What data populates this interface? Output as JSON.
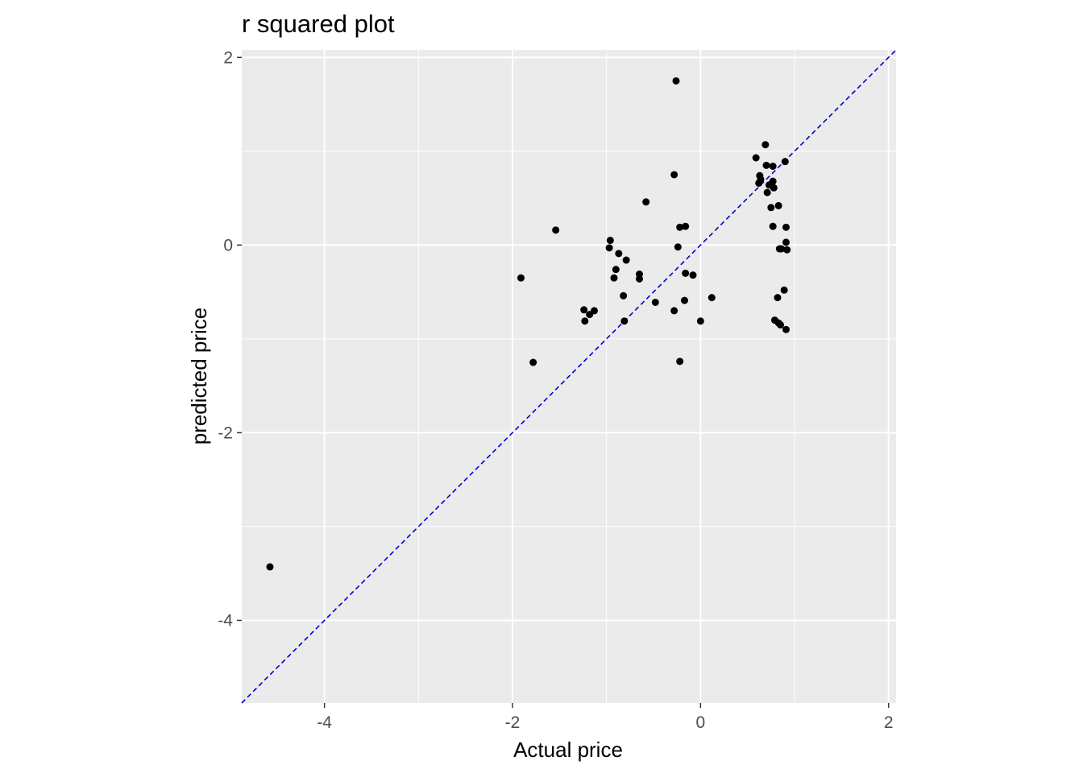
{
  "chart_data": {
    "type": "scatter",
    "title": "r squared plot",
    "xlabel": "Actual price",
    "ylabel": "predicted price",
    "xlim": [
      -4.88,
      2.08
    ],
    "ylim": [
      -4.88,
      2.08
    ],
    "x_ticks": [
      -4,
      -2,
      0,
      2
    ],
    "y_ticks": [
      -4,
      -2,
      0,
      2
    ],
    "x_tick_labels": [
      "-4",
      "-2",
      "0",
      "2"
    ],
    "y_tick_labels": [
      "-4",
      "-2",
      "0",
      "2"
    ],
    "grid": true,
    "reference_line": {
      "slope": 1,
      "intercept": 0,
      "style": "dashed",
      "color": "#0000cc"
    },
    "colors": {
      "panel": "#ebebeb",
      "grid": "#ffffff",
      "points": "#000000"
    },
    "points": [
      {
        "x": -4.58,
        "y": -3.43
      },
      {
        "x": -1.91,
        "y": -0.35
      },
      {
        "x": -1.78,
        "y": -1.25
      },
      {
        "x": -1.54,
        "y": 0.16
      },
      {
        "x": -1.24,
        "y": -0.69
      },
      {
        "x": -1.23,
        "y": -0.81
      },
      {
        "x": -1.18,
        "y": -0.74
      },
      {
        "x": -1.13,
        "y": -0.7
      },
      {
        "x": -0.97,
        "y": -0.03
      },
      {
        "x": -0.96,
        "y": 0.05
      },
      {
        "x": -0.92,
        "y": -0.35
      },
      {
        "x": -0.9,
        "y": -0.26
      },
      {
        "x": -0.87,
        "y": -0.09
      },
      {
        "x": -0.82,
        "y": -0.54
      },
      {
        "x": -0.81,
        "y": -0.81
      },
      {
        "x": -0.79,
        "y": -0.16
      },
      {
        "x": -0.65,
        "y": -0.31
      },
      {
        "x": -0.65,
        "y": -0.36
      },
      {
        "x": -0.58,
        "y": 0.46
      },
      {
        "x": -0.48,
        "y": -0.61
      },
      {
        "x": -0.28,
        "y": 0.75
      },
      {
        "x": -0.28,
        "y": -0.7
      },
      {
        "x": -0.26,
        "y": 1.75
      },
      {
        "x": -0.24,
        "y": -0.02
      },
      {
        "x": -0.22,
        "y": 0.19
      },
      {
        "x": -0.22,
        "y": -1.24
      },
      {
        "x": -0.17,
        "y": -0.59
      },
      {
        "x": -0.16,
        "y": -0.3
      },
      {
        "x": -0.16,
        "y": 0.2
      },
      {
        "x": -0.08,
        "y": -0.32
      },
      {
        "x": 0.0,
        "y": -0.81
      },
      {
        "x": 0.12,
        "y": -0.56
      },
      {
        "x": 0.59,
        "y": 0.93
      },
      {
        "x": 0.62,
        "y": 0.66
      },
      {
        "x": 0.63,
        "y": 0.74
      },
      {
        "x": 0.64,
        "y": 0.7
      },
      {
        "x": 0.69,
        "y": 1.07
      },
      {
        "x": 0.7,
        "y": 0.85
      },
      {
        "x": 0.71,
        "y": 0.56
      },
      {
        "x": 0.73,
        "y": 0.64
      },
      {
        "x": 0.75,
        "y": 0.4
      },
      {
        "x": 0.77,
        "y": 0.84
      },
      {
        "x": 0.77,
        "y": 0.2
      },
      {
        "x": 0.77,
        "y": 0.68
      },
      {
        "x": 0.78,
        "y": 0.61
      },
      {
        "x": 0.79,
        "y": -0.8
      },
      {
        "x": 0.82,
        "y": -0.56
      },
      {
        "x": 0.83,
        "y": 0.42
      },
      {
        "x": 0.83,
        "y": -0.83
      },
      {
        "x": 0.84,
        "y": -0.04
      },
      {
        "x": 0.85,
        "y": -0.85
      },
      {
        "x": 0.86,
        "y": -0.04
      },
      {
        "x": 0.89,
        "y": -0.48
      },
      {
        "x": 0.9,
        "y": 0.89
      },
      {
        "x": 0.91,
        "y": 0.19
      },
      {
        "x": 0.91,
        "y": -0.9
      },
      {
        "x": 0.91,
        "y": 0.03
      },
      {
        "x": 0.92,
        "y": -0.05
      }
    ]
  }
}
